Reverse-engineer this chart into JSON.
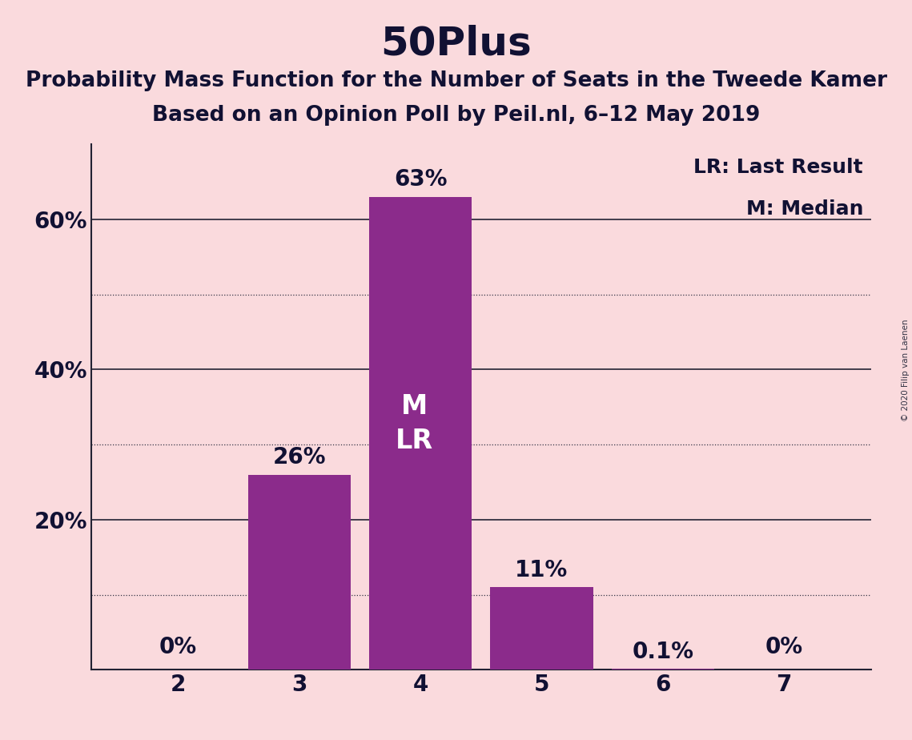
{
  "title": "50Plus",
  "subtitle1": "Probability Mass Function for the Number of Seats in the Tweede Kamer",
  "subtitle2": "Based on an Opinion Poll by Peil.nl, 6–12 May 2019",
  "copyright": "© 2020 Filip van Laenen",
  "categories": [
    2,
    3,
    4,
    5,
    6,
    7
  ],
  "values": [
    0.0,
    26.0,
    63.0,
    11.0,
    0.1,
    0.0
  ],
  "labels": [
    "0%",
    "26%",
    "63%",
    "11%",
    "0.1%",
    "0%"
  ],
  "bar_color": "#8B2B8B",
  "background_color": "#FADADD",
  "title_color": "#111133",
  "text_color": "#111133",
  "bar_label_color_outside": "#111133",
  "bar_label_color_inside": "#FADADD",
  "ylim": [
    0,
    70
  ],
  "yticks": [
    20,
    40,
    60
  ],
  "ytick_labels": [
    "20%",
    "40%",
    "60%"
  ],
  "solid_gridlines": [
    20,
    40,
    60
  ],
  "dotted_gridlines": [
    10,
    30,
    50
  ],
  "legend_lr": "LR: Last Result",
  "legend_m": "M: Median",
  "median_bar": 4,
  "last_result_bar": 4,
  "title_fontsize": 36,
  "subtitle_fontsize": 19,
  "label_fontsize": 20,
  "tick_fontsize": 20,
  "legend_fontsize": 18,
  "ml_fontsize": 24
}
